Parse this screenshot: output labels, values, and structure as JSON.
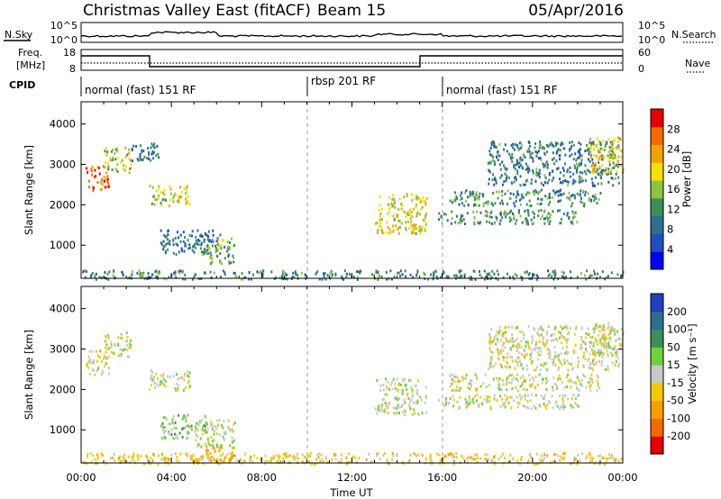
{
  "header": {
    "station": "Christmas Valley East (fitACF)",
    "beam": "Beam 15",
    "date": "05/Apr/2016"
  },
  "top_panels": {
    "nsky_label": "N.Sky",
    "nsearch_label": "N.Search",
    "noise_ticks": [
      "10^5",
      "10^0"
    ],
    "freq_label_1": "Freq.",
    "freq_label_2": "[MHz]",
    "freq_ticks": [
      "18",
      "8"
    ],
    "nave_label": "Nave",
    "nave_ticks": [
      "60",
      "0"
    ],
    "cpid_label": "CPID",
    "cpid_segments": [
      {
        "label": "normal (fast) 151 RF",
        "start": 0,
        "end": 10
      },
      {
        "label": "rbsp 201 RF",
        "start": 10,
        "end": 16
      },
      {
        "label": "normal (fast) 151 RF",
        "start": 16,
        "end": 24
      }
    ]
  },
  "colors": {
    "power_scale": [
      "#0000ff",
      "#1f4fbf",
      "#2e6e8e",
      "#3a8f5a",
      "#8cc43c",
      "#f5e000",
      "#f5a200",
      "#f56a00",
      "#e60000"
    ],
    "velocity_scale": [
      "#e60000",
      "#f56a00",
      "#f5a000",
      "#f5c800",
      "#c8c8c8",
      "#6ed23a",
      "#3a8f5a",
      "#2e6e8e",
      "#1f3fbf"
    ]
  },
  "chart_data": [
    {
      "type": "heatmap",
      "name": "power",
      "ylabel": "Slant Range [km]",
      "yticks": [
        1000,
        2000,
        3000,
        4000
      ],
      "ylim": [
        180,
        4550
      ],
      "xlim": [
        0,
        24
      ],
      "colorbar_label": "Power [dB]",
      "colorbar_ticks": [
        4,
        8,
        12,
        16,
        20,
        24,
        28
      ],
      "colorbar_range": [
        0,
        32
      ],
      "regions": [
        {
          "t": [
            0.2,
            1.2
          ],
          "r": [
            2350,
            3000
          ],
          "v": 26
        },
        {
          "t": [
            1.0,
            2.2
          ],
          "r": [
            2800,
            3450
          ],
          "v": 17
        },
        {
          "t": [
            2.2,
            3.4
          ],
          "r": [
            3100,
            3550
          ],
          "v": 10
        },
        {
          "t": [
            3.0,
            4.8
          ],
          "r": [
            2000,
            2500
          ],
          "v": 18
        },
        {
          "t": [
            3.5,
            6.2
          ],
          "r": [
            800,
            1400
          ],
          "v": 9
        },
        {
          "t": [
            5.3,
            6.8
          ],
          "r": [
            550,
            1200
          ],
          "v": 14
        },
        {
          "t": [
            0.0,
            24.0
          ],
          "r": [
            180,
            400
          ],
          "v": 11
        },
        {
          "t": [
            13.0,
            15.3
          ],
          "r": [
            1300,
            2300
          ],
          "v": 19
        },
        {
          "t": [
            15.8,
            22.0
          ],
          "r": [
            1550,
            1900
          ],
          "v": 12
        },
        {
          "t": [
            16.3,
            23.0
          ],
          "r": [
            2000,
            2400
          ],
          "v": 11
        },
        {
          "t": [
            18.0,
            23.8
          ],
          "r": [
            2500,
            3600
          ],
          "v": 10
        },
        {
          "t": [
            22.5,
            24.0
          ],
          "r": [
            2800,
            3700
          ],
          "v": 20
        }
      ]
    },
    {
      "type": "heatmap",
      "name": "velocity",
      "ylabel": "Slant Range [km]",
      "xlabel": "Time UT",
      "xticks": [
        "00:00",
        "04:00",
        "08:00",
        "12:00",
        "16:00",
        "20:00",
        "00:00"
      ],
      "xlim": [
        0,
        24
      ],
      "yticks": [
        1000,
        2000,
        3000,
        4000
      ],
      "ylim": [
        180,
        4550
      ],
      "colorbar_label": "Velocity [m s⁻¹]",
      "colorbar_ticks": [
        "200",
        "100",
        "50",
        "15",
        "-15",
        "-50",
        "-100",
        "-200"
      ],
      "regions": [
        {
          "t": [
            0.2,
            1.2
          ],
          "r": [
            2350,
            3000
          ],
          "v": -5
        },
        {
          "t": [
            1.0,
            2.2
          ],
          "r": [
            2800,
            3450
          ],
          "v": 0
        },
        {
          "t": [
            3.0,
            4.8
          ],
          "r": [
            2000,
            2500
          ],
          "v": 0
        },
        {
          "t": [
            3.5,
            5.5
          ],
          "r": [
            800,
            1400
          ],
          "v": 30
        },
        {
          "t": [
            5.0,
            6.8
          ],
          "r": [
            600,
            1300
          ],
          "v": 0
        },
        {
          "t": [
            5.5,
            6.8
          ],
          "r": [
            250,
            600
          ],
          "v": -60
        },
        {
          "t": [
            0.0,
            24.0
          ],
          "r": [
            180,
            450
          ],
          "v": -30
        },
        {
          "t": [
            13.0,
            15.3
          ],
          "r": [
            1400,
            2300
          ],
          "v": 0
        },
        {
          "t": [
            15.8,
            22.0
          ],
          "r": [
            1550,
            1900
          ],
          "v": 0
        },
        {
          "t": [
            16.3,
            23.0
          ],
          "r": [
            2000,
            2400
          ],
          "v": 0
        },
        {
          "t": [
            18.0,
            23.8
          ],
          "r": [
            2500,
            3600
          ],
          "v": -5
        },
        {
          "t": [
            22.5,
            24.0
          ],
          "r": [
            2900,
            3700
          ],
          "v": 0
        }
      ]
    }
  ]
}
